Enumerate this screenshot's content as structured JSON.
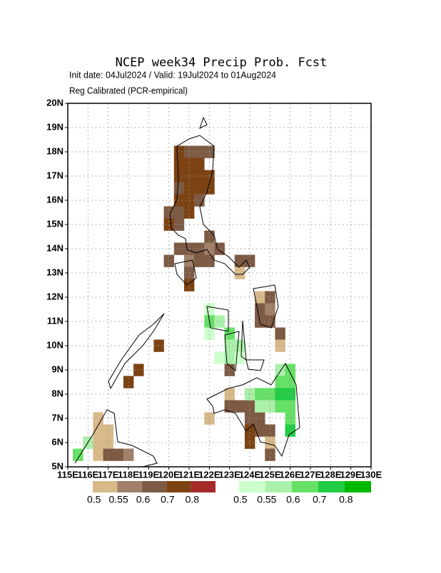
{
  "chart_data": {
    "type": "map",
    "title": "NCEP week34 Precip Prob. Fcst",
    "subtitle": "Init date: 04Jul2024 / Valid: 19Jul2024 to 01Aug2024",
    "caption": "Reg Calibrated (PCR-empirical)",
    "xlim": [
      115,
      130
    ],
    "ylim": [
      5,
      20
    ],
    "grid": true,
    "xticks": [
      {
        "value": 115,
        "label": "115E"
      },
      {
        "value": 116,
        "label": "116E"
      },
      {
        "value": 117,
        "label": "117E"
      },
      {
        "value": 118,
        "label": "118E"
      },
      {
        "value": 119,
        "label": "119E"
      },
      {
        "value": 120,
        "label": "120E"
      },
      {
        "value": 121,
        "label": "121E"
      },
      {
        "value": 122,
        "label": "122E"
      },
      {
        "value": 123,
        "label": "123E"
      },
      {
        "value": 124,
        "label": "124E"
      },
      {
        "value": 125,
        "label": "125E"
      },
      {
        "value": 126,
        "label": "126E"
      },
      {
        "value": 127,
        "label": "127E"
      },
      {
        "value": 128,
        "label": "128E"
      },
      {
        "value": 129,
        "label": "129E"
      },
      {
        "value": 130,
        "label": "130E"
      }
    ],
    "yticks": [
      {
        "value": 5,
        "label": "5N"
      },
      {
        "value": 6,
        "label": "6N"
      },
      {
        "value": 7,
        "label": "7N"
      },
      {
        "value": 8,
        "label": "8N"
      },
      {
        "value": 9,
        "label": "9N"
      },
      {
        "value": 10,
        "label": "10N"
      },
      {
        "value": 11,
        "label": "11N"
      },
      {
        "value": 12,
        "label": "12N"
      },
      {
        "value": 13,
        "label": "13N"
      },
      {
        "value": 14,
        "label": "14N"
      },
      {
        "value": 15,
        "label": "15N"
      },
      {
        "value": 16,
        "label": "16N"
      },
      {
        "value": 17,
        "label": "17N"
      },
      {
        "value": 18,
        "label": "18N"
      },
      {
        "value": 19,
        "label": "19N"
      },
      {
        "value": 20,
        "label": "20N"
      }
    ],
    "series": [
      {
        "colors": [
          "#d8b98a",
          "#a08069",
          "#7d5a44",
          "#7c4212",
          "#a52a2a"
        ],
        "ticks": [
          0.5,
          0.55,
          0.6,
          0.7,
          0.8
        ],
        "cells": [
          [
            120.5,
            18,
            0.7
          ],
          [
            121,
            18,
            0.6
          ],
          [
            121.5,
            18,
            0.6
          ],
          [
            122,
            18,
            0.6
          ],
          [
            120.5,
            17.5,
            0.7
          ],
          [
            121,
            17.5,
            0.7
          ],
          [
            121.5,
            17.5,
            0.7
          ],
          [
            120.5,
            17,
            0.7
          ],
          [
            121,
            17,
            0.7
          ],
          [
            121.5,
            17,
            0.7
          ],
          [
            122,
            17,
            0.7
          ],
          [
            120.5,
            16.5,
            0.6
          ],
          [
            121,
            16.5,
            0.7
          ],
          [
            121.5,
            16.5,
            0.7
          ],
          [
            122,
            16.5,
            0.7
          ],
          [
            120.5,
            16,
            0.7
          ],
          [
            121,
            16,
            0.7
          ],
          [
            121.5,
            16,
            0.6
          ],
          [
            120,
            15.5,
            0.6
          ],
          [
            120.5,
            15.5,
            0.6
          ],
          [
            121,
            15.5,
            0.7
          ],
          [
            120,
            15,
            0.7
          ],
          [
            120.5,
            15,
            0.6
          ],
          [
            122,
            14.5,
            0.6
          ],
          [
            120.5,
            14,
            0.6
          ],
          [
            121,
            14,
            0.6
          ],
          [
            121.5,
            14,
            0.6
          ],
          [
            122,
            14,
            0.55
          ],
          [
            122.5,
            14,
            0.6
          ],
          [
            120,
            13.5,
            0.6
          ],
          [
            121,
            13.5,
            0.55
          ],
          [
            121.5,
            13.5,
            0.6
          ],
          [
            122,
            13.5,
            0.6
          ],
          [
            123.5,
            13.5,
            0.6
          ],
          [
            124,
            13.5,
            0.6
          ],
          [
            121,
            13,
            0.6
          ],
          [
            123.5,
            13,
            0.5
          ],
          [
            121,
            12.5,
            0.7
          ],
          [
            124.5,
            12,
            0.5
          ],
          [
            125,
            12,
            0.6
          ],
          [
            124.5,
            11.5,
            0.6
          ],
          [
            125,
            11.5,
            0.55
          ],
          [
            124.5,
            11,
            0.6
          ],
          [
            125,
            11,
            0.6
          ],
          [
            125.5,
            10.5,
            0.6
          ],
          [
            125.5,
            10,
            0.5
          ],
          [
            119.5,
            10,
            0.7
          ],
          [
            118.5,
            9,
            0.7
          ],
          [
            118,
            8.5,
            0.7
          ],
          [
            123,
            9,
            0.6
          ],
          [
            123,
            8,
            0.5
          ],
          [
            123,
            7.5,
            0.6
          ],
          [
            123.5,
            7.5,
            0.6
          ],
          [
            124,
            7.5,
            0.6
          ],
          [
            122,
            7,
            0.5
          ],
          [
            124,
            7,
            0.6
          ],
          [
            124.5,
            7,
            0.6
          ],
          [
            124,
            6.5,
            0.7
          ],
          [
            124.5,
            6.5,
            0.6
          ],
          [
            125,
            6.5,
            0.6
          ],
          [
            124,
            6,
            0.7
          ],
          [
            125,
            6,
            0.5
          ],
          [
            125,
            5.5,
            0.6
          ],
          [
            116.5,
            7,
            0.5
          ],
          [
            116.5,
            6.5,
            0.5
          ],
          [
            117,
            6.5,
            0.5
          ],
          [
            116.5,
            6,
            0.5
          ],
          [
            117,
            6,
            0.5
          ],
          [
            116.5,
            5.5,
            0.5
          ],
          [
            117,
            5.5,
            0.6
          ],
          [
            117.5,
            5.5,
            0.6
          ],
          [
            118,
            5.5,
            0.55
          ]
        ]
      },
      {
        "colors": [
          "#ccffcc",
          "#aaf0aa",
          "#66e066",
          "#22cc44",
          "#00b800"
        ],
        "ticks": [
          0.5,
          0.55,
          0.6,
          0.7,
          0.8
        ],
        "cells": [
          [
            122,
            11.5,
            0.5
          ],
          [
            122,
            11,
            0.6
          ],
          [
            122.5,
            11,
            0.55
          ],
          [
            122,
            10.5,
            0.5
          ],
          [
            123,
            10.5,
            0.6
          ],
          [
            123,
            10,
            0.55
          ],
          [
            123.5,
            10,
            0.55
          ],
          [
            122.5,
            9.5,
            0.5
          ],
          [
            123,
            9.5,
            0.55
          ],
          [
            123.5,
            9.5,
            0.5
          ],
          [
            125.5,
            9,
            0.55
          ],
          [
            126,
            9,
            0.6
          ],
          [
            125.5,
            8.5,
            0.6
          ],
          [
            126,
            8.5,
            0.6
          ],
          [
            124,
            8,
            0.55
          ],
          [
            124.5,
            8,
            0.6
          ],
          [
            125,
            8,
            0.6
          ],
          [
            125.5,
            8,
            0.7
          ],
          [
            126,
            8,
            0.7
          ],
          [
            124.5,
            7.5,
            0.55
          ],
          [
            125,
            7.5,
            0.55
          ],
          [
            125.5,
            7.5,
            0.6
          ],
          [
            126,
            7.5,
            0.6
          ],
          [
            126,
            7,
            0.6
          ],
          [
            126,
            6.5,
            0.7
          ],
          [
            116,
            6,
            0.55
          ],
          [
            115.5,
            5.5,
            0.6
          ]
        ]
      }
    ]
  }
}
